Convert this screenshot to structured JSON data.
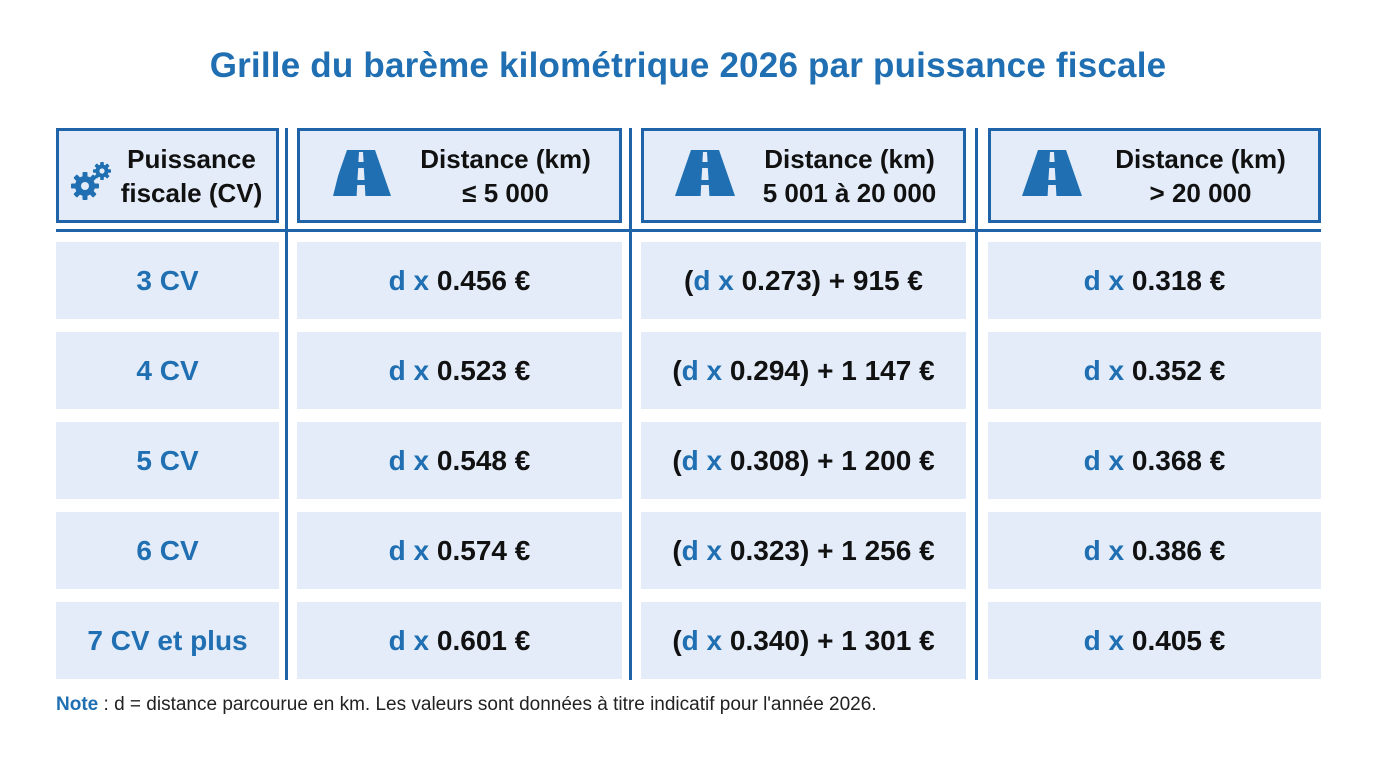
{
  "title": "Grille du barème kilométrique 2026 par puissance fiscale",
  "colors": {
    "accent": "#1f6fb2",
    "border": "#1f64a8",
    "cell_bg": "#e3ecf8"
  },
  "header": {
    "col1": {
      "icon": "gears-icon",
      "line1": "Puissance",
      "line2": "fiscale (CV)"
    },
    "col2": {
      "icon": "road-icon",
      "line1": "Distance (km)",
      "line2": "≤ 5 000"
    },
    "col3": {
      "icon": "road-icon",
      "line1": "Distance (km)",
      "line2": "5 001 à 20 000"
    },
    "col4": {
      "icon": "road-icon",
      "line1": "Distance (km)",
      "line2": "> 20 000"
    }
  },
  "rows": [
    {
      "cv": "3 CV",
      "c1": {
        "var": "d x",
        "val": "0.456 €"
      },
      "c2": {
        "open": "(",
        "var": "d x",
        "rest": "0.273) + 915 €"
      },
      "c3": {
        "var": "d x",
        "val": "0.318 €"
      }
    },
    {
      "cv": "4 CV",
      "c1": {
        "var": "d x",
        "val": "0.523 €"
      },
      "c2": {
        "open": "(",
        "var": "d x",
        "rest": "0.294) + 1 147 €"
      },
      "c3": {
        "var": "d x",
        "val": "0.352 €"
      }
    },
    {
      "cv": "5 CV",
      "c1": {
        "var": "d x",
        "val": "0.548 €"
      },
      "c2": {
        "open": "(",
        "var": "d x",
        "rest": "0.308) + 1 200 €"
      },
      "c3": {
        "var": "d x",
        "val": "0.368 €"
      }
    },
    {
      "cv": "6 CV",
      "c1": {
        "var": "d x",
        "val": "0.574 €"
      },
      "c2": {
        "open": "(",
        "var": "d x",
        "rest": "0.323) + 1 256 €"
      },
      "c3": {
        "var": "d x",
        "val": "0.386 €"
      }
    },
    {
      "cv": "7 CV et plus",
      "c1": {
        "var": "d x",
        "val": "0.601 €"
      },
      "c2": {
        "open": "(",
        "var": "d x",
        "rest": "0.340) + 1 301 €"
      },
      "c3": {
        "var": "d x",
        "val": "0.405 €"
      }
    }
  ],
  "note": {
    "label": "Note",
    "text": " : d = distance parcourue en km. Les valeurs sont données à titre indicatif pour l'année 2026."
  }
}
